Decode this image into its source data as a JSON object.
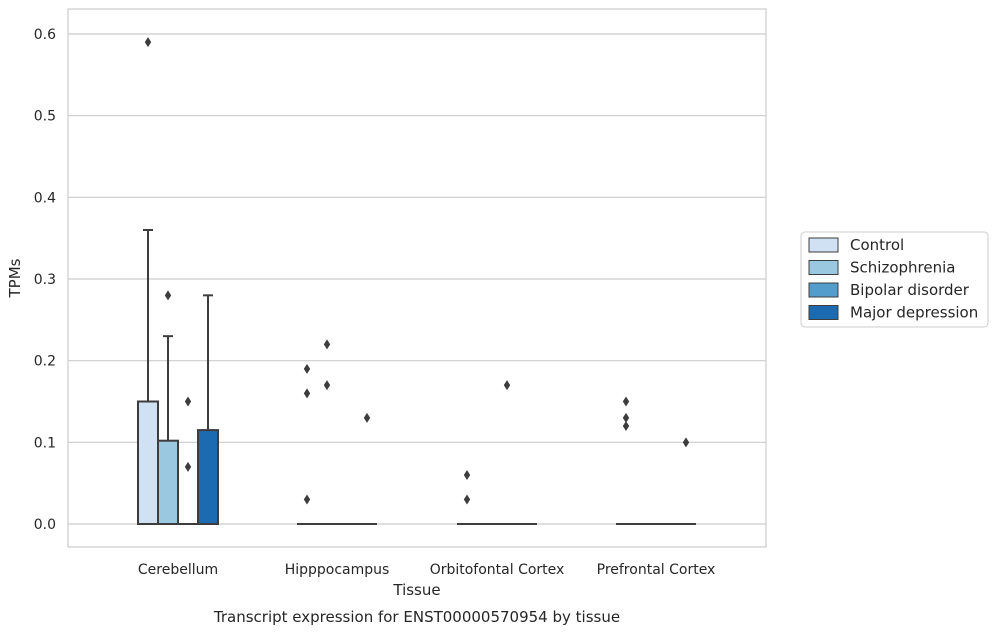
{
  "chart_data": {
    "type": "box",
    "title": "",
    "caption": "Transcript expression for ENST00000570954 by tissue",
    "xlabel": "Tissue",
    "ylabel": "TPMs",
    "ylim": [
      -0.028,
      0.62
    ],
    "yticks": [
      0.0,
      0.1,
      0.2,
      0.3,
      0.4,
      0.5,
      0.6
    ],
    "ytick_labels": [
      "0.0",
      "0.1",
      "0.2",
      "0.3",
      "0.4",
      "0.5",
      "0.6"
    ],
    "categories": [
      "Cerebellum",
      "Hipppocampus",
      "Orbitofontal Cortex",
      "Prefrontal Cortex"
    ],
    "grid": true,
    "legend_position": "right",
    "series": [
      {
        "name": "Control",
        "color": "#cfe1f2",
        "boxes": [
          {
            "q1": 0.0,
            "median": 0.0,
            "q3": 0.15,
            "whisker_low": 0.0,
            "whisker_high": 0.36,
            "outliers": [
              0.59
            ]
          },
          {
            "q1": 0.0,
            "median": 0.0,
            "q3": 0.0,
            "whisker_low": 0.0,
            "whisker_high": 0.0,
            "outliers": [
              0.19,
              0.16,
              0.03
            ]
          },
          {
            "q1": 0.0,
            "median": 0.0,
            "q3": 0.0,
            "whisker_low": 0.0,
            "whisker_high": 0.0,
            "outliers": [
              0.06,
              0.03
            ]
          },
          {
            "q1": 0.0,
            "median": 0.0,
            "q3": 0.0,
            "whisker_low": 0.0,
            "whisker_high": 0.0,
            "outliers": [
              0.15,
              0.13,
              0.12
            ]
          }
        ]
      },
      {
        "name": "Schizophrenia",
        "color": "#9ac8e0",
        "boxes": [
          {
            "q1": 0.0,
            "median": 0.0,
            "q3": 0.102,
            "whisker_low": 0.0,
            "whisker_high": 0.23,
            "outliers": [
              0.28
            ]
          },
          {
            "q1": 0.0,
            "median": 0.0,
            "q3": 0.0,
            "whisker_low": 0.0,
            "whisker_high": 0.0,
            "outliers": [
              0.22,
              0.17
            ]
          },
          {
            "q1": 0.0,
            "median": 0.0,
            "q3": 0.0,
            "whisker_low": 0.0,
            "whisker_high": 0.0,
            "outliers": []
          },
          {
            "q1": 0.0,
            "median": 0.0,
            "q3": 0.0,
            "whisker_low": 0.0,
            "whisker_high": 0.0,
            "outliers": []
          }
        ]
      },
      {
        "name": "Bipolar disorder",
        "color": "#529dcc",
        "boxes": [
          {
            "q1": 0.0,
            "median": 0.0,
            "q3": 0.0,
            "whisker_low": 0.0,
            "whisker_high": 0.0,
            "outliers": [
              0.15,
              0.07
            ]
          },
          {
            "q1": 0.0,
            "median": 0.0,
            "q3": 0.0,
            "whisker_low": 0.0,
            "whisker_high": 0.0,
            "outliers": []
          },
          {
            "q1": 0.0,
            "median": 0.0,
            "q3": 0.0,
            "whisker_low": 0.0,
            "whisker_high": 0.0,
            "outliers": [
              0.17
            ]
          },
          {
            "q1": 0.0,
            "median": 0.0,
            "q3": 0.0,
            "whisker_low": 0.0,
            "whisker_high": 0.0,
            "outliers": []
          }
        ]
      },
      {
        "name": "Major depression",
        "color": "#1c6aaf",
        "boxes": [
          {
            "q1": 0.0,
            "median": 0.0,
            "q3": 0.115,
            "whisker_low": 0.0,
            "whisker_high": 0.28,
            "outliers": []
          },
          {
            "q1": 0.0,
            "median": 0.0,
            "q3": 0.0,
            "whisker_low": 0.0,
            "whisker_high": 0.0,
            "outliers": [
              0.13
            ]
          },
          {
            "q1": 0.0,
            "median": 0.0,
            "q3": 0.0,
            "whisker_low": 0.0,
            "whisker_high": 0.0,
            "outliers": []
          },
          {
            "q1": 0.0,
            "median": 0.0,
            "q3": 0.0,
            "whisker_low": 0.0,
            "whisker_high": 0.0,
            "outliers": [
              0.1
            ]
          }
        ]
      }
    ]
  }
}
